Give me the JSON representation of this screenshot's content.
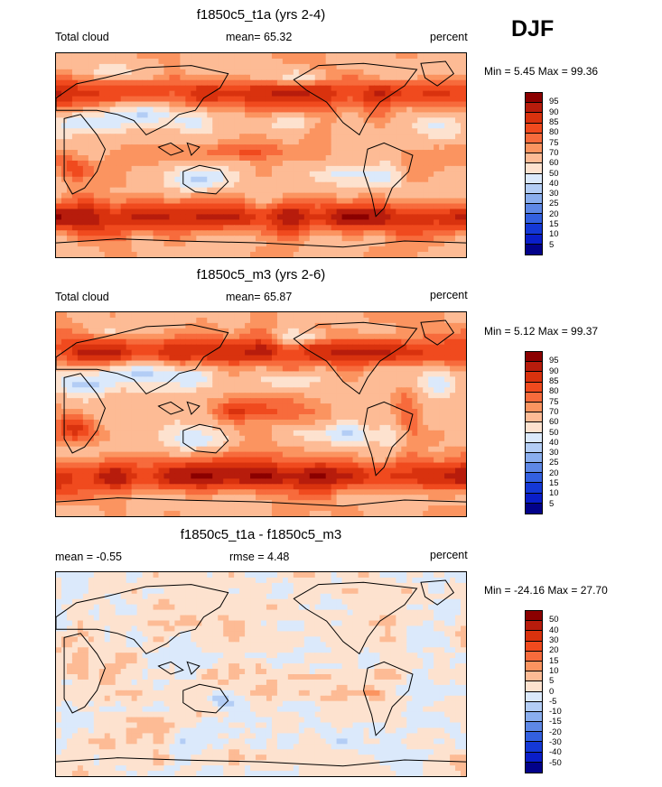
{
  "season": "DJF",
  "panels": [
    {
      "title": "f1850c5_t1a (yrs 2-4)",
      "left_label": "Total cloud",
      "center_label": "mean=  65.32",
      "right_label": "percent",
      "minmax": "Min =   5.45 Max =  99.36",
      "kind": "abs"
    },
    {
      "title": "f1850c5_m3 (yrs 2-6)",
      "left_label": "Total cloud",
      "center_label": "mean=  65.87",
      "right_label": "percent",
      "minmax": "Min =   5.12 Max =  99.37",
      "kind": "abs"
    },
    {
      "title": "f1850c5_t1a - f1850c5_m3",
      "left_label": "mean =  -0.55",
      "center_label": "rmse =   4.48",
      "right_label": "percent",
      "minmax": "Min = -24.16 Max =  27.70",
      "kind": "diff"
    }
  ],
  "colorbars": {
    "abs": {
      "labels": [
        "95",
        "90",
        "85",
        "80",
        "75",
        "70",
        "60",
        "50",
        "40",
        "30",
        "25",
        "20",
        "15",
        "10",
        "5"
      ],
      "colors": [
        "#8b0000",
        "#b71c0c",
        "#d9320e",
        "#f04a1e",
        "#f76b3c",
        "#fb9460",
        "#fdbb95",
        "#fde2cf",
        "#dbe9fb",
        "#b3cdf5",
        "#8aaeee",
        "#5e88e6",
        "#3360e0",
        "#1438d6",
        "#0a1ec9",
        "#02028a"
      ]
    },
    "diff": {
      "labels": [
        "50",
        "40",
        "30",
        "20",
        "15",
        "10",
        "5",
        "0",
        "-5",
        "-10",
        "-15",
        "-20",
        "-30",
        "-40",
        "-50"
      ],
      "colors": [
        "#8b0000",
        "#b71c0c",
        "#d9320e",
        "#f04a1e",
        "#f76b3c",
        "#fb9460",
        "#fdbb95",
        "#fde2cf",
        "#dbe9fb",
        "#b3cdf5",
        "#8aaeee",
        "#5e88e6",
        "#3360e0",
        "#1438d6",
        "#0a1ec9",
        "#02028a"
      ]
    }
  },
  "chart_data": {
    "type": "heatmap",
    "projection": "cylindrical equidistant, global, centered on 180",
    "variable": "Total cloud",
    "units": "percent",
    "season": "DJF",
    "panels": [
      {
        "case": "f1850c5_t1a (yrs 2-4)",
        "mean": 65.32,
        "min": 5.45,
        "max": 99.36,
        "levels": [
          5,
          10,
          15,
          20,
          25,
          30,
          40,
          50,
          60,
          70,
          75,
          80,
          85,
          90,
          95
        ]
      },
      {
        "case": "f1850c5_m3 (yrs 2-6)",
        "mean": 65.87,
        "min": 5.12,
        "max": 99.37,
        "levels": [
          5,
          10,
          15,
          20,
          25,
          30,
          40,
          50,
          60,
          70,
          75,
          80,
          85,
          90,
          95
        ]
      },
      {
        "case": "f1850c5_t1a - f1850c5_m3",
        "mean": -0.55,
        "rmse": 4.48,
        "min": -24.16,
        "max": 27.7,
        "levels": [
          -50,
          -40,
          -30,
          -20,
          -15,
          -10,
          -5,
          0,
          5,
          10,
          15,
          20,
          30,
          40,
          50
        ]
      }
    ]
  }
}
